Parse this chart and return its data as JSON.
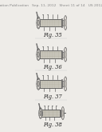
{
  "background_color": "#eeece8",
  "header_text": "Patent Application Publication   Sep. 11, 2012   Sheet 11 of 14   US 2012/0008384 A1",
  "fig_labels": [
    "Fig. 35",
    "Fig. 36",
    "Fig. 37",
    "Fig. 38"
  ],
  "line_color": "#555555",
  "body_fill": "#d4d0c8",
  "grid_color": "#aaa898",
  "connector_fill": "#c8c4bc",
  "gear_fill": "#dedad4",
  "header_fontsize": 3.2,
  "fig_label_fontsize": 4.8
}
